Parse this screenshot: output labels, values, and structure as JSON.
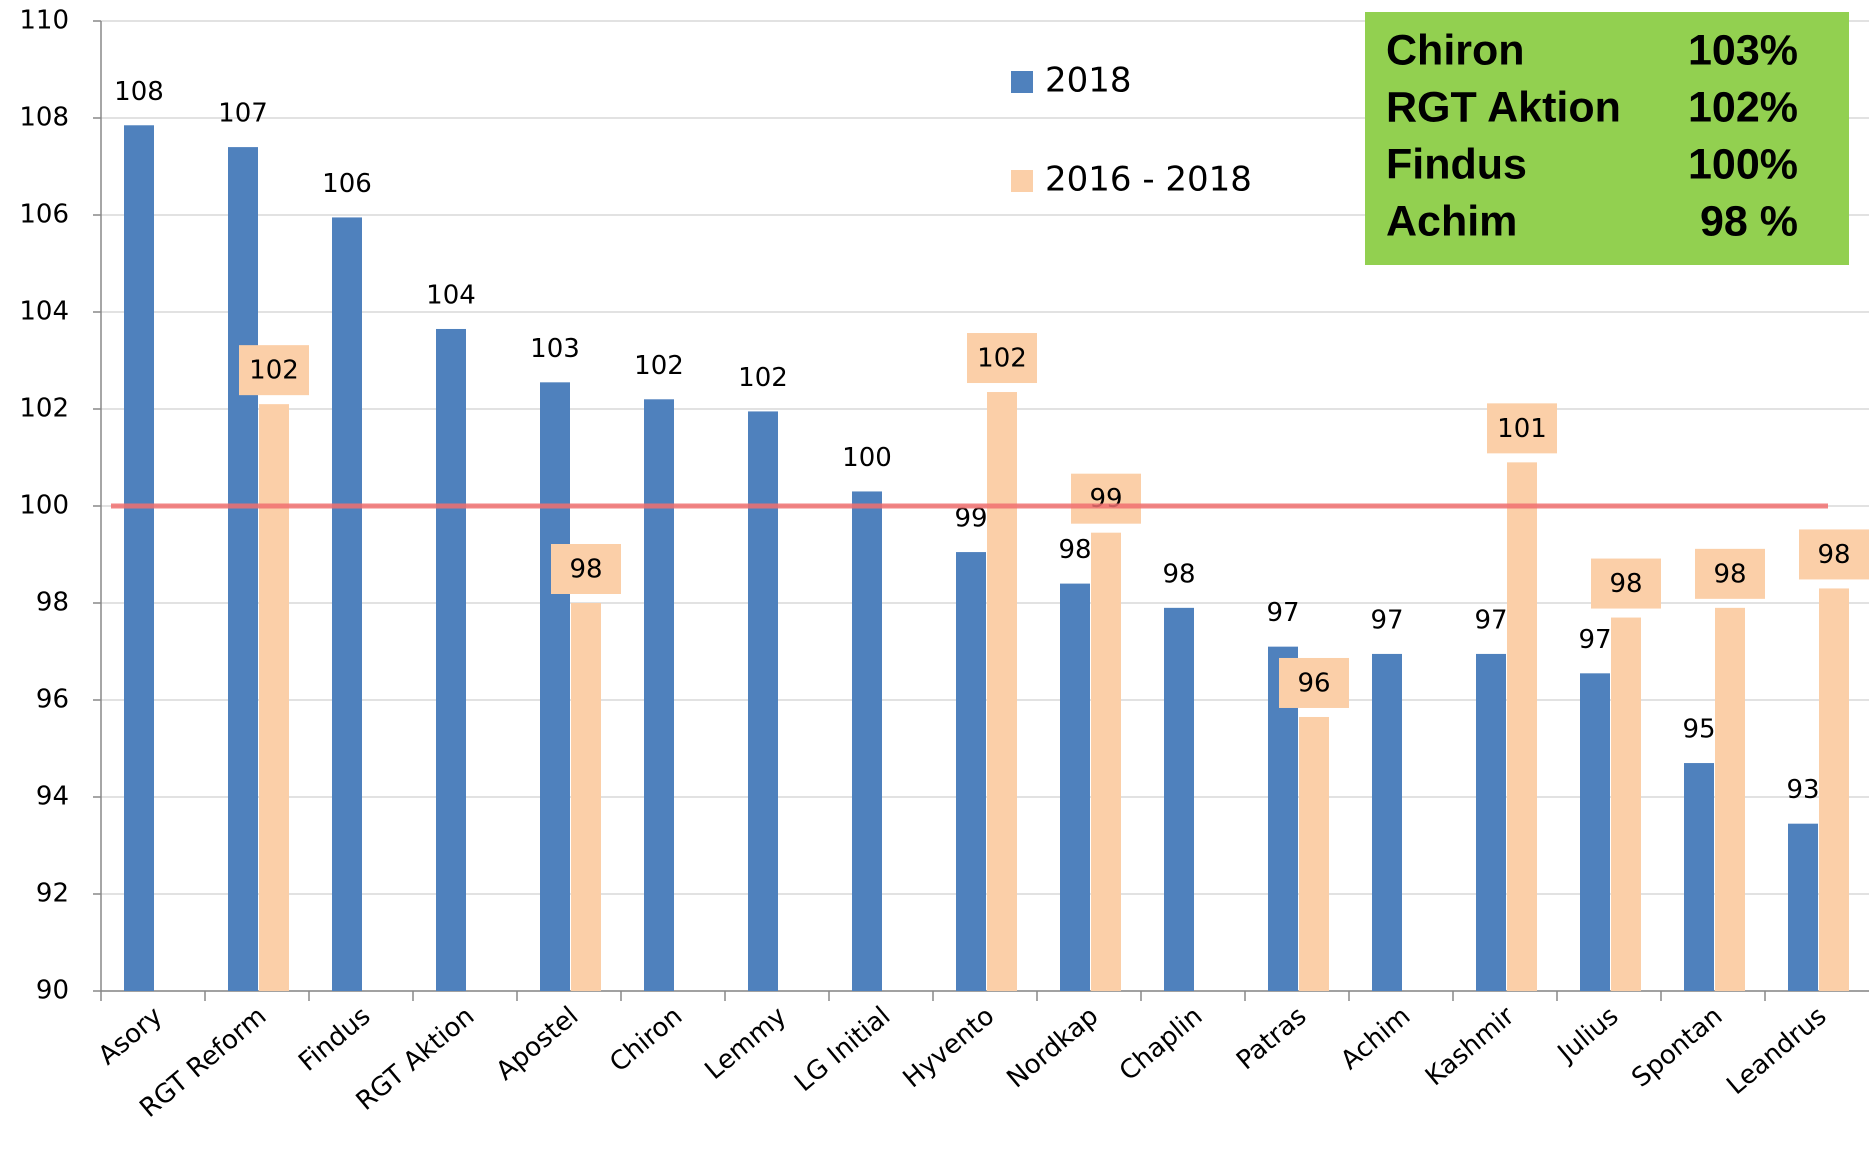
{
  "chart_data": {
    "type": "bar",
    "categories": [
      "Asory",
      "RGT Reform",
      "Findus",
      "RGT Aktion",
      "Apostel",
      "Chiron",
      "Lemmy",
      "LG Initial",
      "Hyvento",
      "Nordkap",
      "Chaplin",
      "Patras",
      "Achim",
      "Kashmir",
      "Julius",
      "Spontan",
      "Leandrus"
    ],
    "series": [
      {
        "name": "2018",
        "color": "#4f81bd",
        "values": [
          107.85,
          107.4,
          105.95,
          103.65,
          102.55,
          102.2,
          101.95,
          100.3,
          99.05,
          98.4,
          97.9,
          97.1,
          96.95,
          96.95,
          96.55,
          94.7,
          93.45
        ],
        "value_labels": [
          "108",
          "107",
          "106",
          "104",
          "103",
          "102",
          "102",
          "100",
          "99",
          "98",
          "98",
          "97",
          "97",
          "97",
          "97",
          "95",
          "93"
        ]
      },
      {
        "name": "2016 - 2018",
        "color": "#fbcfa8",
        "values": [
          null,
          102.1,
          null,
          null,
          98.0,
          null,
          null,
          null,
          102.35,
          99.45,
          null,
          95.65,
          null,
          100.9,
          97.7,
          97.9,
          98.3
        ],
        "value_labels": [
          null,
          "102",
          null,
          null,
          "98",
          null,
          null,
          null,
          "102",
          "99",
          null,
          "96",
          null,
          "101",
          "98",
          "98",
          "98"
        ]
      }
    ],
    "ylim": [
      90,
      110
    ],
    "yticks": [
      90,
      92,
      94,
      96,
      98,
      100,
      102,
      104,
      106,
      108,
      110
    ],
    "grid": true,
    "reference_line": 100,
    "reference_color": "#f07070",
    "annotation_box": {
      "color": "#92d050",
      "rows": [
        [
          "Chiron",
          "103%"
        ],
        [
          "RGT Aktion",
          "102%"
        ],
        [
          "Findus",
          "100%"
        ],
        [
          "Achim",
          "98 %"
        ]
      ]
    }
  }
}
